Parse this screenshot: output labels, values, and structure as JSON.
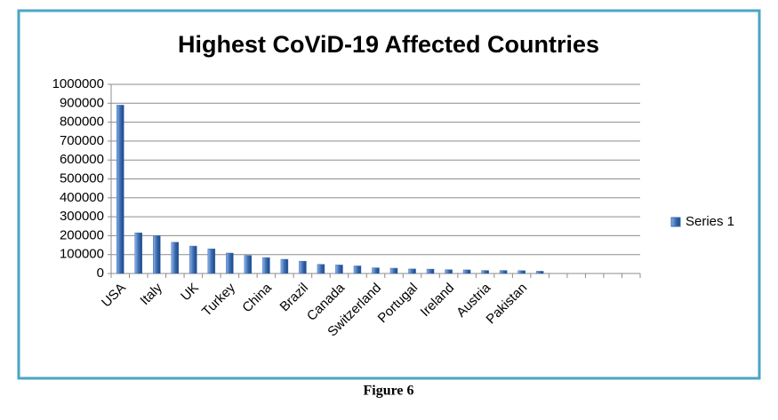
{
  "chart_data": {
    "type": "bar",
    "title": "Highest CoViD-19 Affected Countries",
    "categories": [
      "USA",
      null,
      "Italy",
      null,
      "UK",
      null,
      "Turkey",
      null,
      "China",
      null,
      "Brazil",
      null,
      "Canada",
      null,
      "Switzerland",
      null,
      "Portugal",
      null,
      "Ireland",
      null,
      "Austria",
      null,
      "Pakistan",
      null,
      null,
      null,
      null,
      null,
      null
    ],
    "series": [
      {
        "name": "Series 1",
        "color": "#3b6db3",
        "values": [
          890000,
          215000,
          200000,
          165000,
          145000,
          130000,
          108000,
          95000,
          84000,
          75000,
          65000,
          48000,
          45000,
          40000,
          30000,
          28000,
          24000,
          23000,
          20000,
          19000,
          16000,
          16000,
          15000,
          12000,
          null,
          null,
          null,
          null,
          null
        ]
      }
    ],
    "ylim": [
      0,
      1000000
    ],
    "yticks": [
      0,
      100000,
      200000,
      300000,
      400000,
      500000,
      600000,
      700000,
      800000,
      900000,
      1000000
    ],
    "grid": true,
    "legend": "right",
    "caption": "Figure 6"
  }
}
